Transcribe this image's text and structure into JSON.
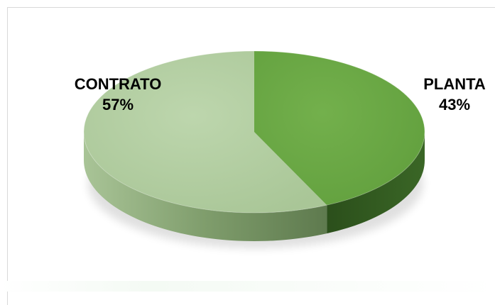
{
  "chart_data": {
    "type": "pie",
    "style": "3d",
    "title": "",
    "categories": [
      "CONTRATO",
      "PLANTA"
    ],
    "values": [
      57,
      43
    ],
    "labels": [
      {
        "name": "CONTRATO",
        "percent": "57%"
      },
      {
        "name": "PLANTA",
        "percent": "43%"
      }
    ],
    "legend": "none",
    "colors": {
      "CONTRATO": "#b4cfa2",
      "PLANTA": "#6aa845",
      "CONTRATO_side": "#8fae7c",
      "PLANTA_side": "#2f5a1e"
    }
  }
}
